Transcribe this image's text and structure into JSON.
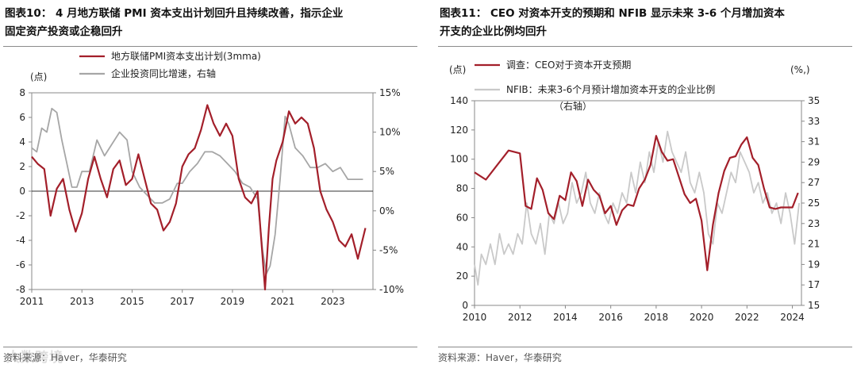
{
  "colors": {
    "red": "#a31f2a",
    "gray": "#a6a6a6",
    "lightgray": "#c9c9c9",
    "axis": "#888888"
  },
  "left": {
    "title_line1": "图表10： 4 月地方联储 PMI 资本支出计划回升且持续改善，指示企业",
    "title_line2": "固定资产投资或企稳回升",
    "source": "资料来源：Haver，华泰研究",
    "watermark": "大数跨境"
  },
  "right": {
    "title_line1": "图表11： CEO 对资本开支的预期和 NFIB 显示未来 3-6 个月增加资本",
    "title_line2": "开支的企业比例均回升",
    "source": "资料来源：Haver，华泰研究"
  },
  "chart_data": [
    {
      "type": "line",
      "title": "图表10： 4 月地方联储 PMI 资本支出计划回升且持续改善，指示企业固定资产投资或企稳回升",
      "ylabel_left": "(点)",
      "ylim_left": [
        -8,
        8
      ],
      "yticks_left": [
        "8",
        "6",
        "4",
        "2",
        "0",
        "-2",
        "-4",
        "-6",
        "-8"
      ],
      "ylim_right": [
        -10,
        15
      ],
      "yticks_right": [
        "15%",
        "10%",
        "5%",
        "0%",
        "-5%",
        "-10%"
      ],
      "xlim": [
        2011,
        2024.6
      ],
      "xticks": [
        "2011",
        "2013",
        "2015",
        "2017",
        "2019",
        "2021",
        "2023"
      ],
      "legend": [
        "地方联储PMI资本支出计划(3mma)",
        "企业投资同比增速，右轴"
      ],
      "series": [
        {
          "name": "地方联储PMI资本支出计划(3mma)",
          "axis": "left",
          "color": "red",
          "x": [
            2011.0,
            2011.25,
            2011.5,
            2011.75,
            2012.0,
            2012.25,
            2012.5,
            2012.75,
            2013.0,
            2013.25,
            2013.5,
            2013.75,
            2014.0,
            2014.25,
            2014.5,
            2014.75,
            2015.0,
            2015.25,
            2015.5,
            2015.75,
            2016.0,
            2016.25,
            2016.5,
            2016.75,
            2017.0,
            2017.25,
            2017.5,
            2017.75,
            2018.0,
            2018.25,
            2018.5,
            2018.75,
            2019.0,
            2019.25,
            2019.5,
            2019.75,
            2020.0,
            2020.15,
            2020.3,
            2020.45,
            2020.6,
            2020.75,
            2021.0,
            2021.25,
            2021.5,
            2021.75,
            2022.0,
            2022.25,
            2022.5,
            2022.75,
            2023.0,
            2023.25,
            2023.5,
            2023.75,
            2024.0,
            2024.3
          ],
          "values": [
            2.8,
            2.2,
            1.8,
            -2.0,
            0.2,
            1.0,
            -1.5,
            -3.3,
            -1.8,
            1.0,
            2.8,
            1.0,
            -0.5,
            1.8,
            2.5,
            0.5,
            1.0,
            3.0,
            1.0,
            -1.0,
            -1.5,
            -3.2,
            -2.5,
            -1.0,
            2.0,
            3.0,
            3.5,
            5.0,
            7.0,
            5.5,
            4.5,
            5.5,
            4.5,
            1.0,
            -0.5,
            -1.0,
            0.0,
            -4.0,
            -8.0,
            -3.0,
            1.0,
            2.5,
            4.0,
            6.5,
            5.5,
            6.0,
            5.5,
            3.5,
            0.0,
            -1.5,
            -2.5,
            -4.0,
            -4.5,
            -3.5,
            -5.5,
            -3.0
          ]
        },
        {
          "name": "企业投资同比增速，右轴",
          "axis": "right",
          "color": "gray",
          "x": [
            2011.0,
            2011.2,
            2011.4,
            2011.6,
            2011.8,
            2012.0,
            2012.2,
            2012.4,
            2012.6,
            2012.8,
            2013.0,
            2013.3,
            2013.6,
            2013.9,
            2014.2,
            2014.5,
            2014.8,
            2015.0,
            2015.3,
            2015.6,
            2015.9,
            2016.2,
            2016.5,
            2016.8,
            2017.0,
            2017.3,
            2017.6,
            2017.9,
            2018.2,
            2018.5,
            2018.8,
            2019.1,
            2019.4,
            2019.7,
            2020.0,
            2020.2,
            2020.35,
            2020.5,
            2020.7,
            2020.9,
            2021.1,
            2021.25,
            2021.5,
            2021.8,
            2022.1,
            2022.4,
            2022.7,
            2023.0,
            2023.3,
            2023.6,
            2023.9,
            2024.2
          ],
          "values": [
            8.0,
            7.5,
            10.5,
            10.0,
            13.0,
            12.5,
            9.0,
            6.0,
            3.0,
            3.0,
            5.0,
            5.0,
            9.0,
            7.0,
            8.5,
            10.0,
            9.0,
            5.0,
            3.0,
            2.0,
            1.0,
            1.0,
            1.5,
            3.5,
            3.5,
            5.0,
            6.0,
            7.5,
            7.5,
            7.0,
            6.0,
            5.0,
            3.5,
            3.0,
            1.5,
            -5.0,
            -8.0,
            -7.0,
            -3.0,
            4.0,
            12.0,
            11.0,
            8.0,
            7.0,
            5.5,
            5.5,
            6.0,
            5.0,
            5.5,
            4.0,
            4.0,
            4.0
          ]
        }
      ]
    },
    {
      "type": "line",
      "title": "图表11： CEO 对资本开支的预期和 NFIB 显示未来 3-6 个月增加资本开支的企业比例均回升",
      "ylabel_left": "(点)",
      "ylabel_right": "(%,)",
      "ylim_left": [
        0,
        140
      ],
      "yticks_left": [
        "140",
        "120",
        "100",
        "80",
        "60",
        "40",
        "20",
        "0"
      ],
      "ylim_right": [
        15,
        35
      ],
      "yticks_right": [
        "35",
        "33",
        "31",
        "29",
        "27",
        "25",
        "23",
        "21",
        "19",
        "17",
        "15"
      ],
      "xlim": [
        2010,
        2024.4
      ],
      "xticks": [
        "2010",
        "2012",
        "2014",
        "2016",
        "2018",
        "2020",
        "2022",
        "2024"
      ],
      "legend": [
        "调查：CEO对于资本开支预期",
        "NFIB：未来3-6个月预计增加资本开支的企业比例",
        "（右轴）"
      ],
      "series": [
        {
          "name": "调查：CEO对于资本开支预期",
          "axis": "left",
          "color": "red",
          "x": [
            2010.0,
            2010.5,
            2011.0,
            2011.5,
            2012.0,
            2012.25,
            2012.5,
            2012.75,
            2013.0,
            2013.25,
            2013.5,
            2013.75,
            2014.0,
            2014.25,
            2014.5,
            2014.75,
            2015.0,
            2015.25,
            2015.5,
            2015.75,
            2016.0,
            2016.25,
            2016.5,
            2016.75,
            2017.0,
            2017.25,
            2017.5,
            2017.75,
            2018.0,
            2018.25,
            2018.5,
            2018.75,
            2019.0,
            2019.25,
            2019.5,
            2019.75,
            2020.0,
            2020.25,
            2020.5,
            2020.75,
            2021.0,
            2021.25,
            2021.5,
            2021.75,
            2022.0,
            2022.25,
            2022.5,
            2022.75,
            2023.0,
            2023.25,
            2023.5,
            2023.75,
            2024.0,
            2024.25
          ],
          "values": [
            91,
            86,
            96,
            106,
            104,
            68,
            66,
            87,
            79,
            63,
            59,
            75,
            72,
            91,
            85,
            68,
            86,
            79,
            75,
            63,
            68,
            55,
            65,
            69,
            68,
            80,
            86,
            96,
            116,
            105,
            99,
            100,
            88,
            76,
            70,
            73,
            58,
            24,
            55,
            77,
            92,
            101,
            102,
            110,
            115,
            101,
            96,
            80,
            67,
            66,
            67,
            67,
            67,
            77
          ]
        },
        {
          "name": "NFIB：未来3-6个月预计增加资本开支的企业比例",
          "axis": "right",
          "color": "lightgray",
          "x": [
            2010.0,
            2010.15,
            2010.3,
            2010.5,
            2010.7,
            2010.9,
            2011.1,
            2011.3,
            2011.5,
            2011.7,
            2011.9,
            2012.1,
            2012.3,
            2012.5,
            2012.7,
            2012.9,
            2013.1,
            2013.3,
            2013.5,
            2013.7,
            2013.9,
            2014.1,
            2014.3,
            2014.5,
            2014.7,
            2014.9,
            2015.1,
            2015.3,
            2015.5,
            2015.7,
            2015.9,
            2016.1,
            2016.3,
            2016.5,
            2016.7,
            2016.9,
            2017.1,
            2017.3,
            2017.5,
            2017.7,
            2017.9,
            2018.1,
            2018.3,
            2018.5,
            2018.7,
            2018.9,
            2019.1,
            2019.3,
            2019.5,
            2019.7,
            2019.9,
            2020.1,
            2020.3,
            2020.5,
            2020.7,
            2020.9,
            2021.1,
            2021.3,
            2021.5,
            2021.7,
            2021.9,
            2022.1,
            2022.3,
            2022.5,
            2022.7,
            2022.9,
            2023.1,
            2023.3,
            2023.5,
            2023.7,
            2023.9,
            2024.1,
            2024.3
          ],
          "values": [
            19,
            17,
            20,
            19,
            21,
            19,
            22,
            20,
            21,
            20,
            22,
            21,
            25,
            22,
            21,
            23,
            20,
            24,
            23,
            25,
            23,
            24,
            27,
            25,
            26,
            28,
            25,
            24,
            26,
            24,
            23,
            25,
            24,
            26,
            25,
            28,
            26,
            29,
            27,
            30,
            28,
            31,
            29,
            32,
            30,
            29,
            28,
            30,
            27,
            26,
            28,
            26,
            22,
            21,
            25,
            24,
            26,
            28,
            27,
            30,
            29,
            28,
            26,
            27,
            25,
            26,
            24,
            25,
            23,
            26,
            24,
            21,
            25
          ]
        }
      ]
    }
  ]
}
